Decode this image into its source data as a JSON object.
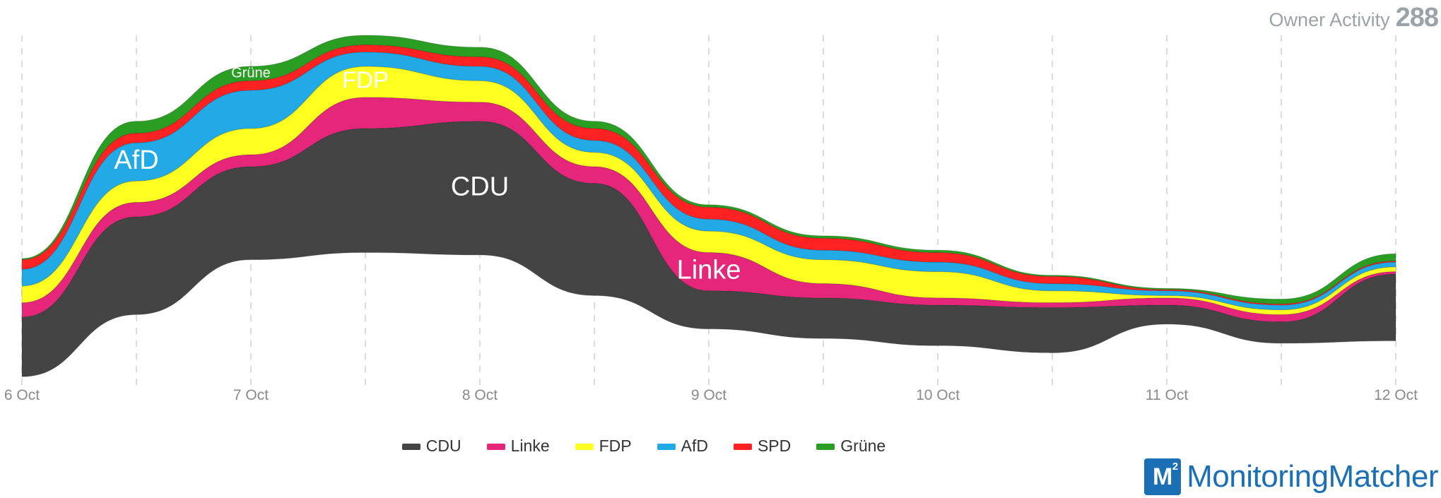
{
  "header": {
    "label": "Owner Activity",
    "count": "288"
  },
  "brand": {
    "logo_text": "M",
    "logo_sup": "2",
    "name": "MonitoringMatcher"
  },
  "chart_data": {
    "type": "area",
    "subtype": "streamgraph",
    "x": [
      "6 Oct",
      "6.5",
      "7 Oct",
      "7.5",
      "8 Oct",
      "8.5",
      "9 Oct",
      "9.5",
      "10 Oct",
      "10.5",
      "11 Oct",
      "11.5",
      "12 Oct"
    ],
    "x_tick_labels": [
      "6 Oct",
      "7 Oct",
      "8 Oct",
      "9 Oct",
      "10 Oct",
      "11 Oct",
      "12 Oct"
    ],
    "baseline": [
      -0.8,
      1.8,
      4.1,
      4.4,
      4.3,
      2.6,
      1.2,
      0.8,
      0.5,
      0.2,
      1.4,
      0.6,
      0.7
    ],
    "series": [
      {
        "name": "CDU",
        "color": "#444444",
        "values": [
          2.5,
          4.1,
          3.9,
          5.2,
          5.6,
          4.7,
          1.6,
          1.7,
          1.7,
          1.9,
          0.8,
          0.9,
          2.8
        ]
      },
      {
        "name": "Linke",
        "color": "#e6267a",
        "values": [
          0.6,
          0.6,
          0.5,
          1.3,
          0.8,
          0.7,
          1.6,
          0.6,
          0.3,
          0.2,
          0.3,
          0.3,
          0.1
        ]
      },
      {
        "name": "FDP",
        "color": "#ffff22",
        "values": [
          0.7,
          0.9,
          1.1,
          1.3,
          0.9,
          0.6,
          0.9,
          1.0,
          1.1,
          0.5,
          0.1,
          0.2,
          0.2
        ]
      },
      {
        "name": "AfD",
        "color": "#22aae6",
        "values": [
          0.7,
          1.6,
          1.6,
          0.6,
          0.6,
          0.5,
          0.5,
          0.4,
          0.4,
          0.3,
          0.2,
          0.2,
          0.2
        ]
      },
      {
        "name": "SPD",
        "color": "#ff2222",
        "values": [
          0.4,
          0.4,
          0.4,
          0.3,
          0.4,
          0.5,
          0.5,
          0.5,
          0.4,
          0.3,
          0.05,
          0.05,
          0.05
        ]
      },
      {
        "name": "Grüne",
        "color": "#2a9e22",
        "values": [
          0.05,
          0.5,
          0.6,
          0.4,
          0.4,
          0.3,
          0.1,
          0.1,
          0.1,
          0.05,
          0.05,
          0.2,
          0.3
        ]
      }
    ],
    "in_chart_labels": [
      {
        "series": "CDU",
        "text": "CDU"
      },
      {
        "series": "Linke",
        "text": "Linke"
      },
      {
        "series": "FDP",
        "text": "FDP"
      },
      {
        "series": "AfD",
        "text": "AfD"
      },
      {
        "series": "Grüne",
        "text": "Grüne"
      }
    ],
    "legend": [
      "CDU",
      "Linke",
      "FDP",
      "AfD",
      "SPD",
      "Grüne"
    ],
    "legend_position": "bottom-center",
    "grid": "vertical-dashed"
  }
}
